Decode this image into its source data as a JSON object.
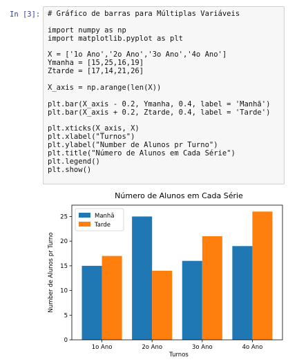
{
  "cell": {
    "prompt": "In [3]:",
    "code_lines": [
      "# Gráfico de barras para Múltiplas Variáveis",
      "",
      "import numpy as np",
      "import matplotlib.pyplot as plt",
      "",
      "X = ['1o Ano','2o Ano','3o Ano','4o Ano']",
      "Ymanha = [15,25,16,19]",
      "Ztarde = [17,14,21,26]",
      "",
      "X_axis = np.arange(len(X))",
      "",
      "plt.bar(X_axis - 0.2, Ymanha, 0.4, label = 'Manhã')",
      "plt.bar(X_axis + 0.2, Ztarde, 0.4, label = 'Tarde')",
      "",
      "plt.xticks(X_axis, X)",
      "plt.xlabel(\"Turnos\")",
      "plt.ylabel(\"Number de Alunos pr Turno\")",
      "plt.title(\"Número de Alunos em Cada Série\")",
      "plt.legend()",
      "plt.show()"
    ]
  },
  "chart_data": {
    "type": "bar",
    "title": "Número de Alunos em Cada Série",
    "xlabel": "Turnos",
    "ylabel": "Number de Alunos pr Turno",
    "categories": [
      "1o Ano",
      "2o Ano",
      "3o Ano",
      "4o Ano"
    ],
    "series": [
      {
        "name": "Manhã",
        "values": [
          15,
          25,
          16,
          19
        ],
        "color": "#1f77b4"
      },
      {
        "name": "Tarde",
        "values": [
          17,
          14,
          21,
          26
        ],
        "color": "#ff7f0e"
      }
    ],
    "ylim": [
      0,
      27.3
    ],
    "yticks": [
      0,
      5,
      10,
      15,
      20,
      25
    ],
    "legend": "top-left",
    "grid": false
  }
}
